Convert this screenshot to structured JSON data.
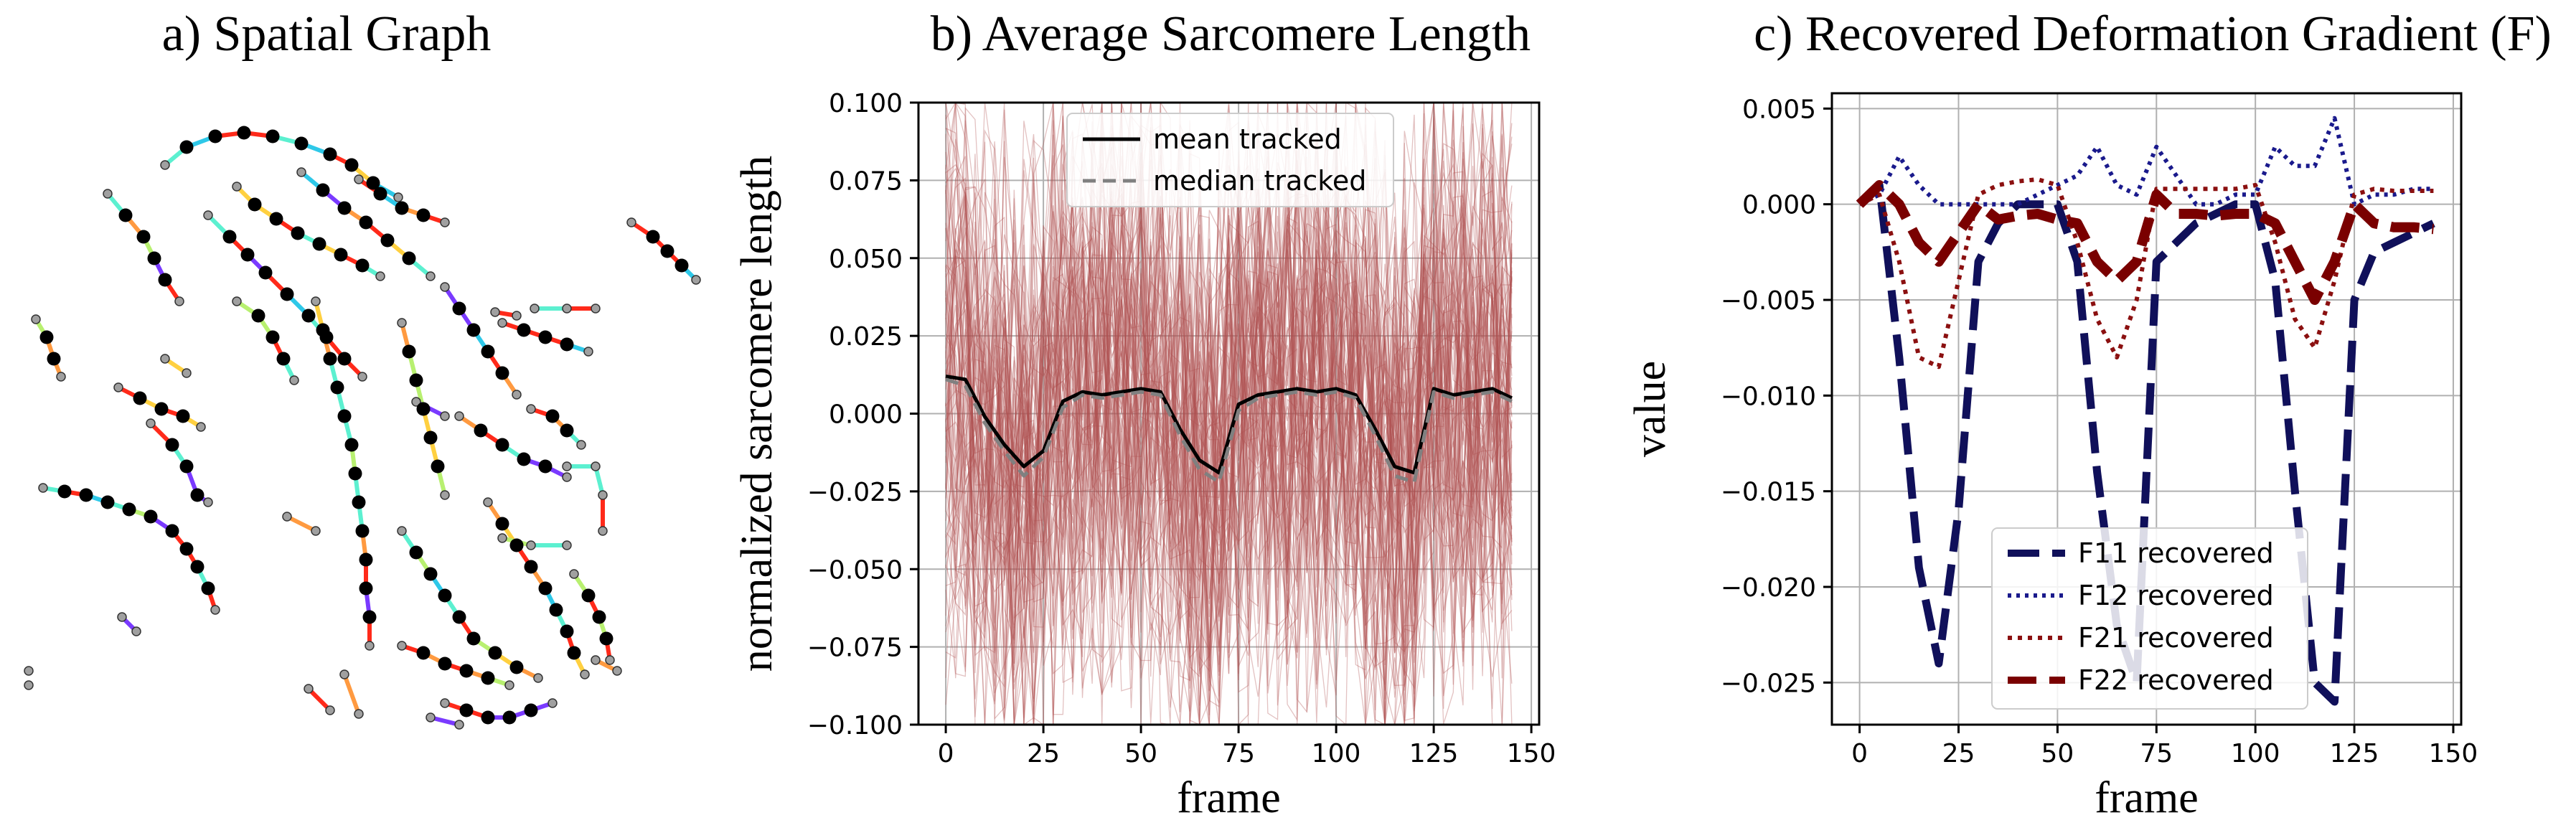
{
  "panels": {
    "a": {
      "title": "a) Spatial Graph"
    },
    "b": {
      "title": "b) Average Sarcomere Length"
    },
    "c": {
      "title": "c) Recovered Deformation Gradient (F)"
    }
  },
  "colors": {
    "node_fill": "#000000",
    "node_small": "#a0a0a0",
    "mean": "#000000",
    "median": "#808080",
    "traces": "#b05050",
    "F11": "#10105a",
    "F12": "#1a1a8c",
    "F21": "#8b1010",
    "F22": "#7a0000",
    "grid": "#b0b0b0"
  },
  "chart_data": [
    {
      "type": "line",
      "panel": "b",
      "title": "b) Average Sarcomere Length",
      "xlabel": "frame",
      "ylabel": "normalized sarcomere length",
      "xlim": [
        -7,
        152
      ],
      "ylim": [
        -0.1,
        0.1
      ],
      "xticks": [
        0,
        25,
        50,
        75,
        100,
        125,
        150
      ],
      "xtick_labels": [
        "0",
        "25",
        "50",
        "75",
        "100",
        "125",
        "150"
      ],
      "yticks": [
        0.1,
        0.075,
        0.05,
        0.025,
        0.0,
        -0.025,
        -0.05,
        -0.075,
        -0.1
      ],
      "ytick_labels": [
        "0.100",
        "0.075",
        "0.050",
        "0.025",
        "0.000",
        "−0.025",
        "−0.050",
        "−0.075",
        "−0.100"
      ],
      "grid": true,
      "legend": {
        "placement": "top-center",
        "entries": [
          "mean tracked",
          "median tracked"
        ]
      },
      "x": [
        0,
        5,
        10,
        15,
        20,
        25,
        30,
        35,
        40,
        45,
        50,
        55,
        60,
        65,
        70,
        75,
        80,
        85,
        90,
        95,
        100,
        105,
        110,
        115,
        120,
        125,
        130,
        135,
        140,
        145
      ],
      "series": [
        {
          "name": "mean tracked",
          "values": [
            0.012,
            0.011,
            -0.001,
            -0.01,
            -0.017,
            -0.012,
            0.004,
            0.007,
            0.006,
            0.007,
            0.008,
            0.007,
            -0.005,
            -0.015,
            -0.019,
            0.003,
            0.006,
            0.007,
            0.008,
            0.007,
            0.008,
            0.006,
            -0.005,
            -0.017,
            -0.019,
            0.008,
            0.006,
            0.007,
            0.008,
            0.005
          ]
        },
        {
          "name": "median tracked",
          "values": [
            0.011,
            0.009,
            -0.003,
            -0.012,
            -0.02,
            -0.014,
            0.002,
            0.006,
            0.005,
            0.006,
            0.007,
            0.006,
            -0.007,
            -0.018,
            -0.022,
            0.001,
            0.005,
            0.006,
            0.007,
            0.006,
            0.007,
            0.005,
            -0.007,
            -0.02,
            -0.022,
            0.007,
            0.005,
            0.006,
            0.007,
            0.004
          ]
        }
      ]
    },
    {
      "type": "line",
      "panel": "c",
      "title": "c) Recovered Deformation Gradient (F)",
      "xlabel": "frame",
      "ylabel": "value",
      "xlim": [
        -7,
        152
      ],
      "ylim": [
        -0.0272,
        0.0058
      ],
      "xticks": [
        0,
        25,
        50,
        75,
        100,
        125,
        150
      ],
      "xtick_labels": [
        "0",
        "25",
        "50",
        "75",
        "100",
        "125",
        "150"
      ],
      "yticks": [
        0.005,
        0.0,
        -0.005,
        -0.01,
        -0.015,
        -0.02,
        -0.025
      ],
      "ytick_labels": [
        "0.005",
        "0.000",
        "−0.005",
        "−0.010",
        "−0.015",
        "−0.020",
        "−0.025"
      ],
      "grid": true,
      "legend": {
        "placement": "bottom-center",
        "entries": [
          "F11 recovered",
          "F12 recovered",
          "F21 recovered",
          "F22 recovered"
        ]
      },
      "x": [
        0,
        5,
        10,
        15,
        20,
        25,
        30,
        35,
        40,
        45,
        50,
        55,
        60,
        65,
        70,
        75,
        80,
        85,
        90,
        95,
        100,
        105,
        110,
        115,
        120,
        125,
        130,
        135,
        140,
        145
      ],
      "series": [
        {
          "name": "F11 recovered",
          "values": [
            0.0,
            0.001,
            -0.008,
            -0.019,
            -0.024,
            -0.016,
            -0.003,
            -0.001,
            0.0,
            0.0,
            0.0,
            -0.003,
            -0.014,
            -0.022,
            -0.025,
            -0.003,
            -0.002,
            -0.001,
            -0.0005,
            0.0,
            0.0,
            -0.004,
            -0.015,
            -0.025,
            -0.026,
            -0.005,
            -0.0025,
            -0.002,
            -0.0015,
            -0.001
          ]
        },
        {
          "name": "F12 recovered",
          "values": [
            0.0,
            0.0005,
            0.0025,
            0.001,
            0.0,
            0.0,
            0.0,
            0.0,
            0.0,
            0.0005,
            0.001,
            0.0015,
            0.003,
            0.001,
            0.0005,
            0.003,
            0.0015,
            0.0,
            0.0,
            0.0005,
            0.0005,
            0.003,
            0.002,
            0.002,
            0.0045,
            0.0,
            0.0005,
            0.0005,
            0.0008,
            0.0008
          ]
        },
        {
          "name": "F21 recovered",
          "values": [
            0.0,
            0.0005,
            -0.003,
            -0.008,
            -0.0085,
            -0.004,
            0.0005,
            0.001,
            0.0012,
            0.0013,
            0.001,
            -0.002,
            -0.006,
            -0.008,
            -0.005,
            0.0008,
            0.0008,
            0.0008,
            0.0008,
            0.0008,
            0.001,
            -0.002,
            -0.006,
            -0.0075,
            -0.004,
            0.0005,
            0.0008,
            0.0007,
            0.0007,
            0.0007
          ]
        },
        {
          "name": "F22 recovered",
          "values": [
            0.0,
            0.001,
            0.0,
            -0.002,
            -0.003,
            -0.0015,
            0.0,
            -0.0008,
            -0.0006,
            -0.0005,
            -0.0008,
            -0.001,
            -0.003,
            -0.004,
            -0.003,
            0.0005,
            -0.0005,
            -0.0005,
            -0.0006,
            -0.0005,
            -0.0005,
            -0.001,
            -0.003,
            -0.005,
            -0.003,
            0.0,
            -0.001,
            -0.0012,
            -0.0012,
            -0.0013
          ]
        }
      ]
    }
  ]
}
